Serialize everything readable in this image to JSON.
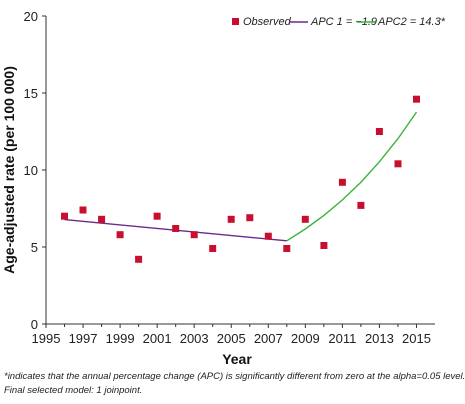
{
  "chart_data": {
    "type": "scatter",
    "xlabel": "Year",
    "ylabel": "Age-adjusted rate (per 100 000)",
    "xlim": [
      1995,
      2016
    ],
    "ylim": [
      0,
      20
    ],
    "x_ticks": [
      1995,
      1997,
      1999,
      2001,
      2003,
      2005,
      2007,
      2009,
      2011,
      2013,
      2015
    ],
    "y_ticks": [
      0,
      5,
      10,
      15,
      20
    ],
    "grid": false,
    "legend_position": "top-right",
    "colors": {
      "observed": "#c8102e",
      "apc1": "#6a2a8e",
      "apc2": "#3bb33b"
    },
    "series": [
      {
        "name": "Observed",
        "kind": "points",
        "x": [
          1996,
          1997,
          1998,
          1999,
          2000,
          2001,
          2002,
          2003,
          2004,
          2005,
          2006,
          2007,
          2008,
          2009,
          2010,
          2011,
          2012,
          2013,
          2014,
          2015
        ],
        "y": [
          7.0,
          7.4,
          6.8,
          5.8,
          4.2,
          7.0,
          6.2,
          5.8,
          4.9,
          6.8,
          6.9,
          5.7,
          4.9,
          6.8,
          5.1,
          9.2,
          7.7,
          12.5,
          10.4,
          14.6
        ]
      },
      {
        "name": "APC 1 = −1.9",
        "kind": "line",
        "x": [
          1996,
          2008
        ],
        "y": [
          6.78,
          5.4
        ]
      },
      {
        "name": "APC2 = 14.3*",
        "kind": "curve",
        "x": [
          2008,
          2009,
          2010,
          2011,
          2012,
          2013,
          2014,
          2015
        ],
        "y": [
          5.4,
          6.17,
          7.05,
          8.06,
          9.21,
          10.53,
          12.04,
          13.76
        ]
      }
    ],
    "footnotes": [
      "*indicates that the annual percentage change (APC) is significantly different from zero at the alpha=0.05 level.",
      "Final selected model: 1 joinpoint."
    ]
  }
}
